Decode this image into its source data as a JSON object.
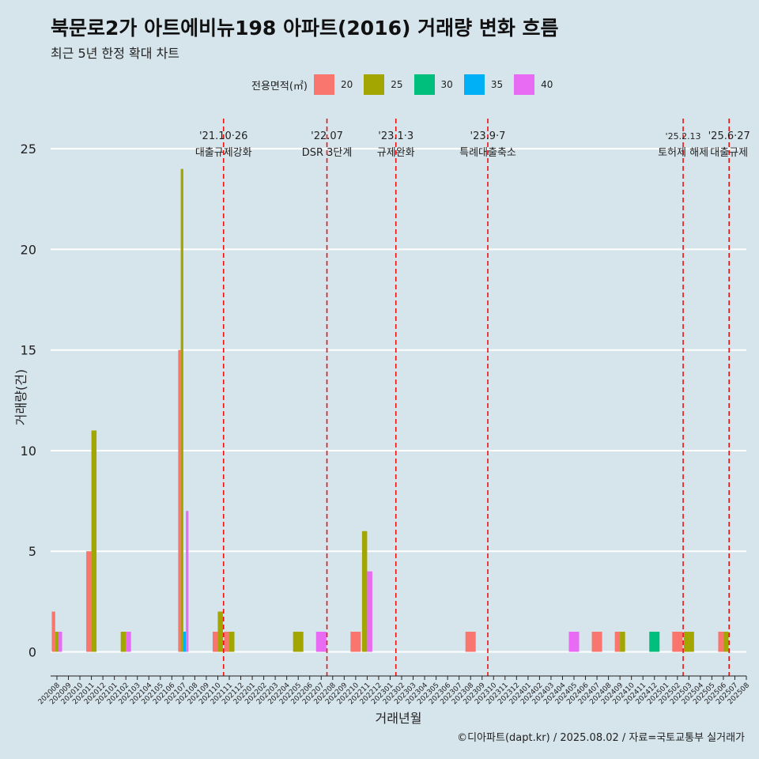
{
  "title": "북문로2가 아트에비뉴198 아파트(2016) 거래량 변화 흐름",
  "subtitle": "최근 5년 한정 확대 차트",
  "caption": "©디아파트(dapt.kr) / 2025.08.02 / 자료=국토교통부 실거래가",
  "legend": {
    "title": "전용면적(㎡)",
    "items": [
      {
        "label": "20",
        "color": "#f8766d"
      },
      {
        "label": "25",
        "color": "#a3a500"
      },
      {
        "label": "30",
        "color": "#00bf7d"
      },
      {
        "label": "35",
        "color": "#00b0f6"
      },
      {
        "label": "40",
        "color": "#e76bf3"
      }
    ]
  },
  "chart_data": {
    "type": "bar",
    "xlabel": "거래년월",
    "ylabel": "거래량(건)",
    "ylim": [
      -1.2,
      26.5
    ],
    "yticks": [
      0,
      5,
      10,
      15,
      20,
      25
    ],
    "grid": true,
    "legend_position": "top",
    "categories": [
      "202008",
      "202009",
      "202010",
      "202011",
      "202012",
      "202101",
      "202102",
      "202103",
      "202104",
      "202105",
      "202106",
      "202107",
      "202108",
      "202109",
      "202110",
      "202111",
      "202112",
      "202201",
      "202202",
      "202203",
      "202204",
      "202205",
      "202206",
      "202207",
      "202208",
      "202209",
      "202210",
      "202211",
      "202212",
      "202301",
      "202302",
      "202303",
      "202304",
      "202305",
      "202306",
      "202307",
      "202308",
      "202309",
      "202310",
      "202311",
      "202312",
      "202401",
      "202402",
      "202403",
      "202404",
      "202405",
      "202406",
      "202407",
      "202408",
      "202409",
      "202410",
      "202411",
      "202412",
      "202501",
      "202502",
      "202503",
      "202504",
      "202505",
      "202506",
      "202507",
      "202508"
    ],
    "series_names": [
      "20",
      "25",
      "30",
      "35",
      "40"
    ],
    "bars": [
      {
        "month": "202008",
        "area": "20",
        "value": 2
      },
      {
        "month": "202008",
        "area": "25",
        "value": 1
      },
      {
        "month": "202008",
        "area": "40",
        "value": 1
      },
      {
        "month": "202011",
        "area": "20",
        "value": 5
      },
      {
        "month": "202011",
        "area": "25",
        "value": 11
      },
      {
        "month": "202102",
        "area": "25",
        "value": 1
      },
      {
        "month": "202102",
        "area": "40",
        "value": 1
      },
      {
        "month": "202107",
        "area": "20",
        "value": 15
      },
      {
        "month": "202107",
        "area": "25",
        "value": 24
      },
      {
        "month": "202107",
        "area": "35",
        "value": 1
      },
      {
        "month": "202107",
        "area": "40",
        "value": 7
      },
      {
        "month": "202110",
        "area": "20",
        "value": 1
      },
      {
        "month": "202110",
        "area": "25",
        "value": 2
      },
      {
        "month": "202111",
        "area": "20",
        "value": 1
      },
      {
        "month": "202111",
        "area": "25",
        "value": 1
      },
      {
        "month": "202205",
        "area": "25",
        "value": 1
      },
      {
        "month": "202207",
        "area": "40",
        "value": 1
      },
      {
        "month": "202210",
        "area": "20",
        "value": 1
      },
      {
        "month": "202211",
        "area": "25",
        "value": 6
      },
      {
        "month": "202211",
        "area": "40",
        "value": 4
      },
      {
        "month": "202308",
        "area": "20",
        "value": 1
      },
      {
        "month": "202405",
        "area": "40",
        "value": 1
      },
      {
        "month": "202407",
        "area": "20",
        "value": 1
      },
      {
        "month": "202409",
        "area": "20",
        "value": 1
      },
      {
        "month": "202409",
        "area": "25",
        "value": 1
      },
      {
        "month": "202412",
        "area": "30",
        "value": 1
      },
      {
        "month": "202502",
        "area": "20",
        "value": 1
      },
      {
        "month": "202503",
        "area": "25",
        "value": 1
      },
      {
        "month": "202506",
        "area": "20",
        "value": 1
      },
      {
        "month": "202506",
        "area": "25",
        "value": 1
      }
    ],
    "events": [
      {
        "month": "202110",
        "date": "'21.10·26",
        "label": "대출규제강화"
      },
      {
        "month": "202207",
        "date": "'22.07",
        "label": "DSR 3단계"
      },
      {
        "month": "202301",
        "date": "'23.1·3",
        "label": "규제완화"
      },
      {
        "month": "202309",
        "date": "'23.9·7",
        "label": "특례대출축소"
      },
      {
        "month": "202502",
        "date": "'25.2.13",
        "label": "토허제 해제"
      },
      {
        "month": "202506",
        "date": "'25.6·27",
        "label": "대출규제"
      }
    ]
  }
}
